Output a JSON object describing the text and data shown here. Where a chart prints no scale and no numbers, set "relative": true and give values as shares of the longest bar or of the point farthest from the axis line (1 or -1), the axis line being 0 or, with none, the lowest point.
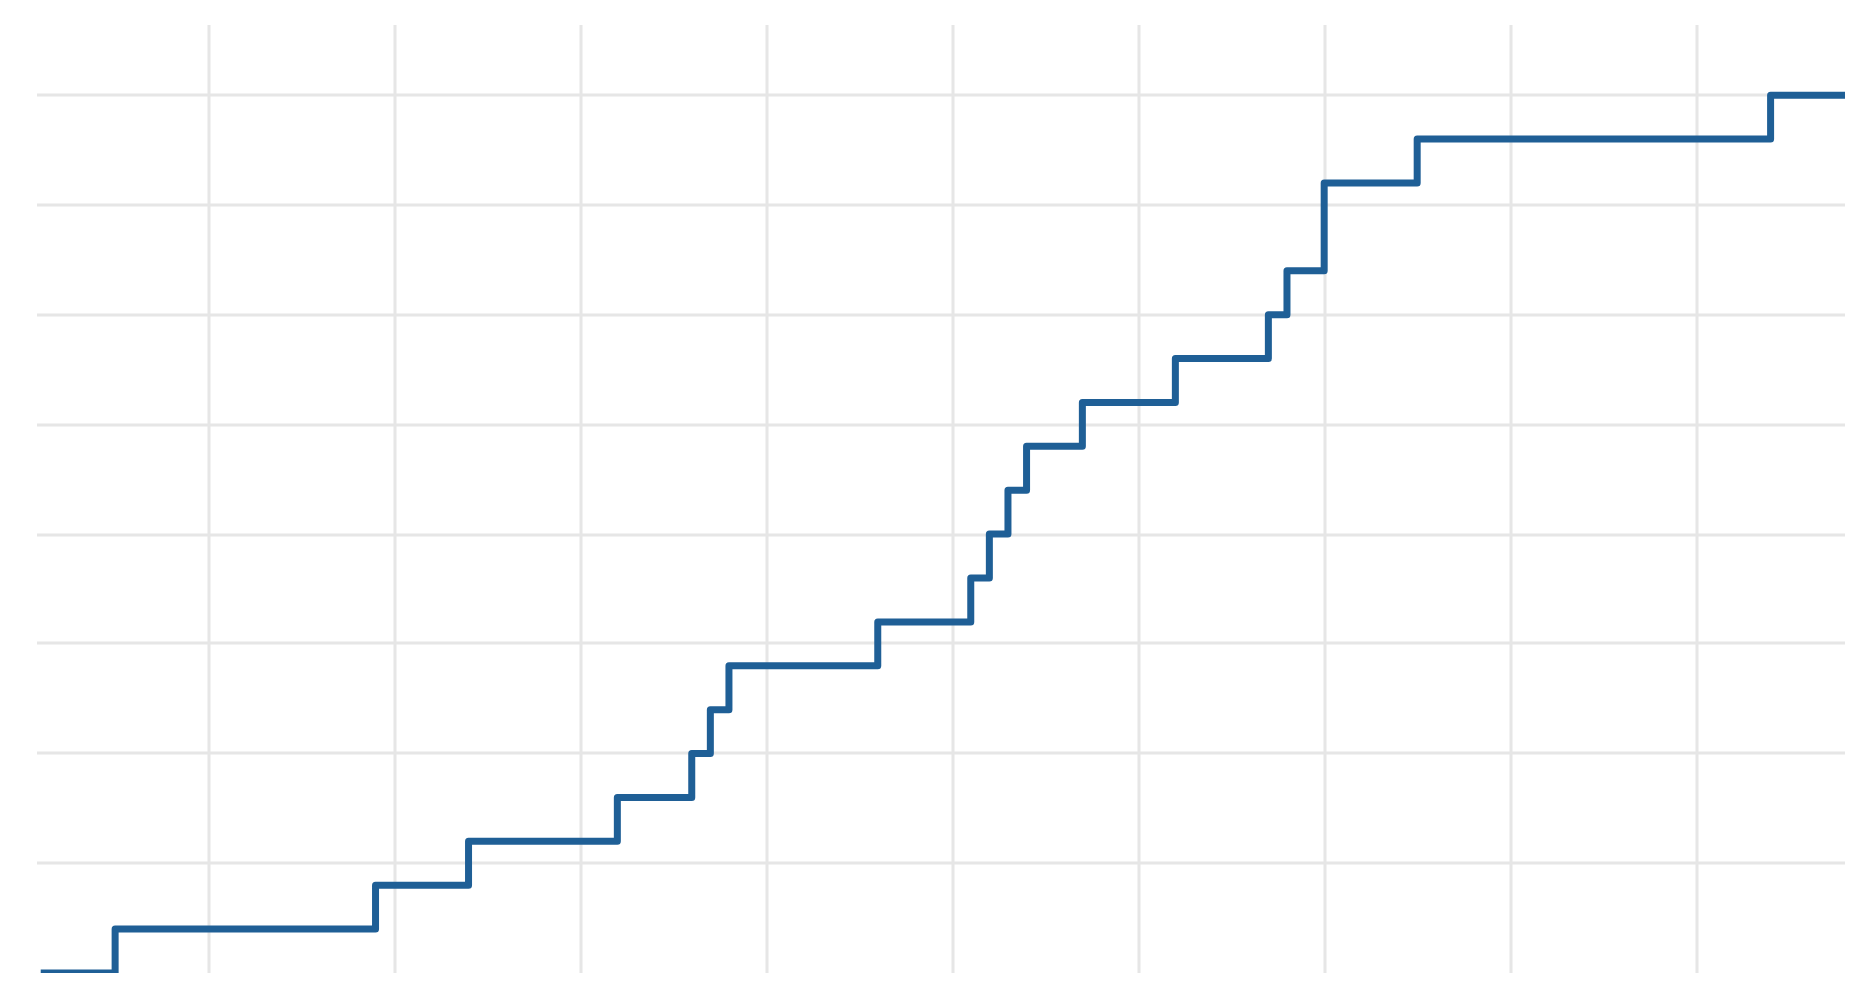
{
  "chart_data": {
    "type": "step",
    "relative": true,
    "categories": [
      null,
      null,
      null,
      null,
      null,
      null,
      null,
      null,
      null,
      null,
      null,
      null,
      null,
      null,
      null,
      null,
      null,
      null,
      null,
      null,
      null,
      null,
      null,
      null,
      null,
      null,
      null,
      null,
      null,
      null,
      null,
      null,
      null,
      null,
      null,
      null,
      null,
      null,
      null,
      null,
      null,
      null,
      null,
      null,
      null,
      null,
      null,
      null,
      null,
      null,
      null,
      null,
      null,
      null,
      null,
      null,
      null,
      null,
      null,
      null,
      null,
      null,
      null,
      null,
      null,
      null,
      null,
      null,
      null,
      null,
      null,
      null,
      null,
      null,
      null,
      null,
      null,
      null,
      null,
      null,
      null,
      null,
      null,
      null,
      null,
      null,
      null,
      null,
      null,
      null,
      null,
      null,
      null,
      null,
      null,
      null,
      null,
      null
    ],
    "series": [
      {
        "color": "#1f5f96",
        "values": [
          0,
          0,
          0,
          0,
          0.05,
          0.05,
          0.05,
          0.05,
          0.05,
          0.05,
          0.05,
          0.05,
          0.05,
          0.05,
          0.05,
          0.05,
          0.05,
          0.05,
          0.1,
          0.1,
          0.1,
          0.1,
          0.1,
          0.15,
          0.15,
          0.15,
          0.15,
          0.15,
          0.15,
          0.15,
          0.15,
          0.2,
          0.2,
          0.2,
          0.2,
          0.25,
          0.3,
          0.35,
          0.35,
          0.35,
          0.35,
          0.35,
          0.35,
          0.35,
          0.35,
          0.4,
          0.4,
          0.4,
          0.4,
          0.4,
          0.45,
          0.5,
          0.55,
          0.6,
          0.6,
          0.6,
          0.65,
          0.65,
          0.65,
          0.65,
          0.65,
          0.7,
          0.7,
          0.7,
          0.7,
          0.7,
          0.75,
          0.8,
          0.8,
          0.9,
          0.9,
          0.9,
          0.9,
          0.9,
          0.95,
          0.95,
          0.95,
          0.95,
          0.95,
          0.95,
          0.95,
          0.95,
          0.95,
          0.95,
          0.95,
          0.95,
          0.95,
          0.95,
          0.95,
          0.95,
          0.95,
          0.95,
          0.95,
          1.0,
          1.0,
          1.0,
          1.0,
          1.0
        ]
      }
    ],
    "grid": true,
    "tick_labels": false,
    "line_style": "solid",
    "marker": "none"
  }
}
